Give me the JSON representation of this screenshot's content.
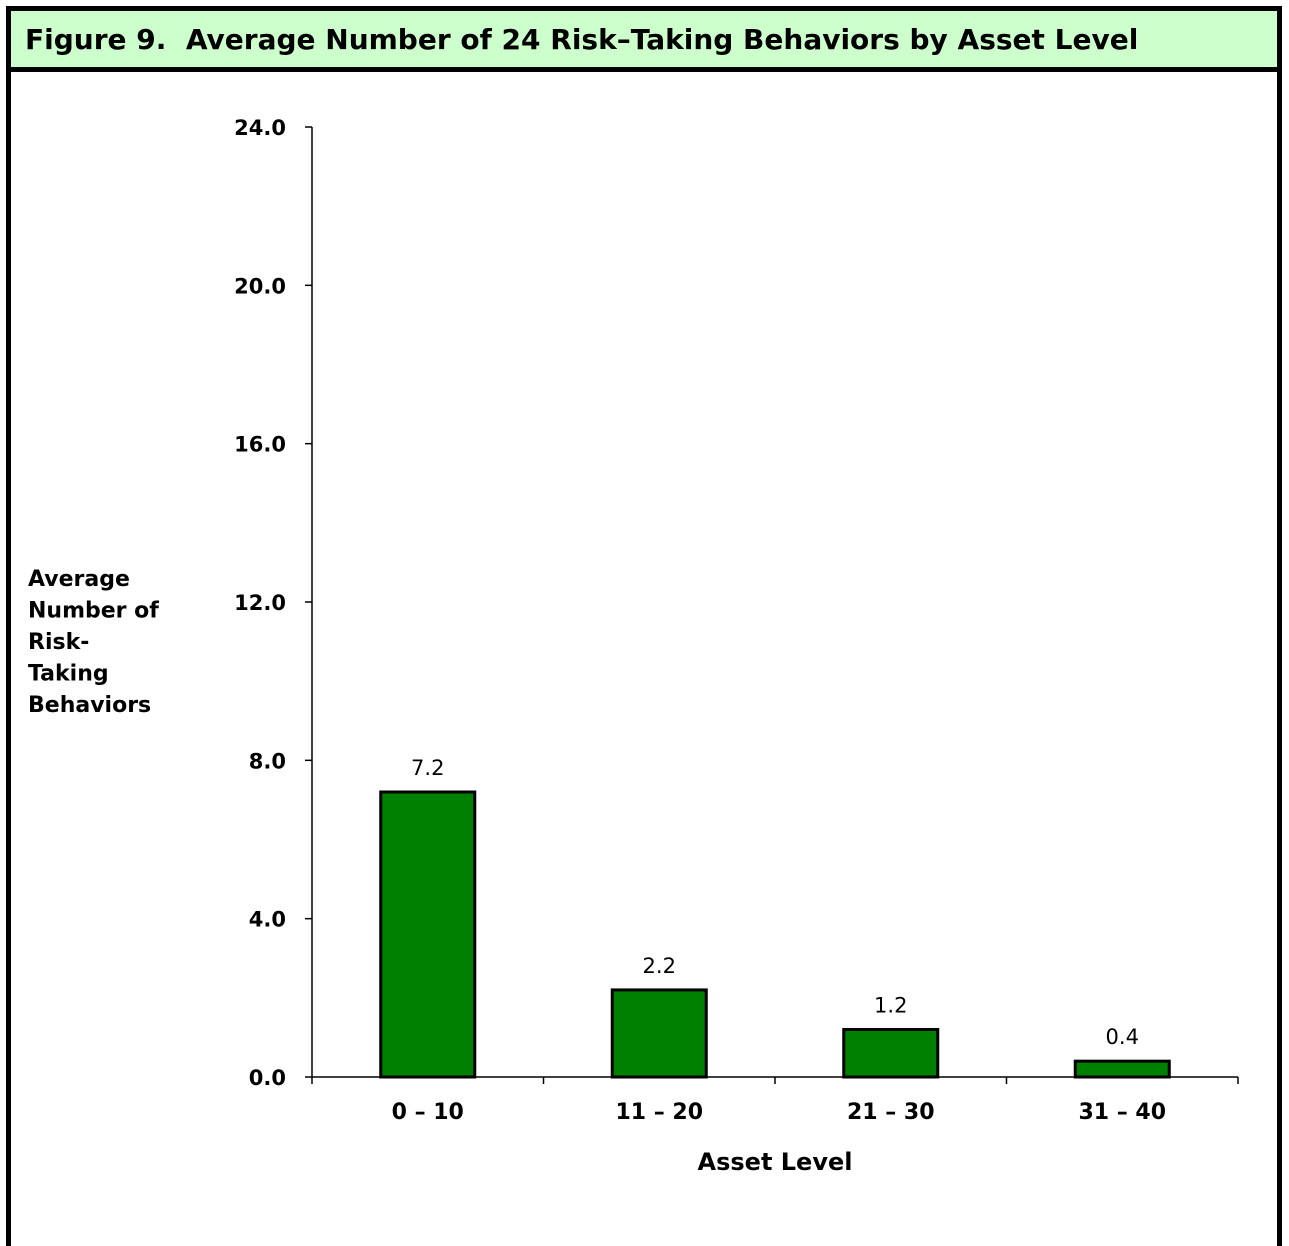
{
  "figure": {
    "title": "Figure 9.  Average Number of 24 Risk–Taking Behaviors by Asset Level"
  },
  "chart_data": {
    "type": "bar",
    "title": "Figure 9.  Average Number of 24 Risk–Taking Behaviors by Asset Level",
    "categories": [
      "0 – 10",
      "11 – 20",
      "21 – 30",
      "31 – 40"
    ],
    "values": [
      7.2,
      2.2,
      1.2,
      0.4
    ],
    "data_labels": [
      "7.2",
      "2.2",
      "1.2",
      "0.4"
    ],
    "xlabel": "Asset Level",
    "ylabel_lines": [
      "Average",
      "Number of",
      "Risk-",
      "Taking",
      "Behaviors"
    ],
    "ylim": [
      0,
      24
    ],
    "yticks": [
      0,
      4,
      8,
      12,
      16,
      20,
      24
    ],
    "ytick_labels": [
      "0.0",
      "4.0",
      "8.0",
      "12.0",
      "16.0",
      "20.0",
      "24.0"
    ],
    "grid": false,
    "legend": "none",
    "colors": {
      "bar_fill": "#008000",
      "bar_stroke": "#000000"
    }
  }
}
